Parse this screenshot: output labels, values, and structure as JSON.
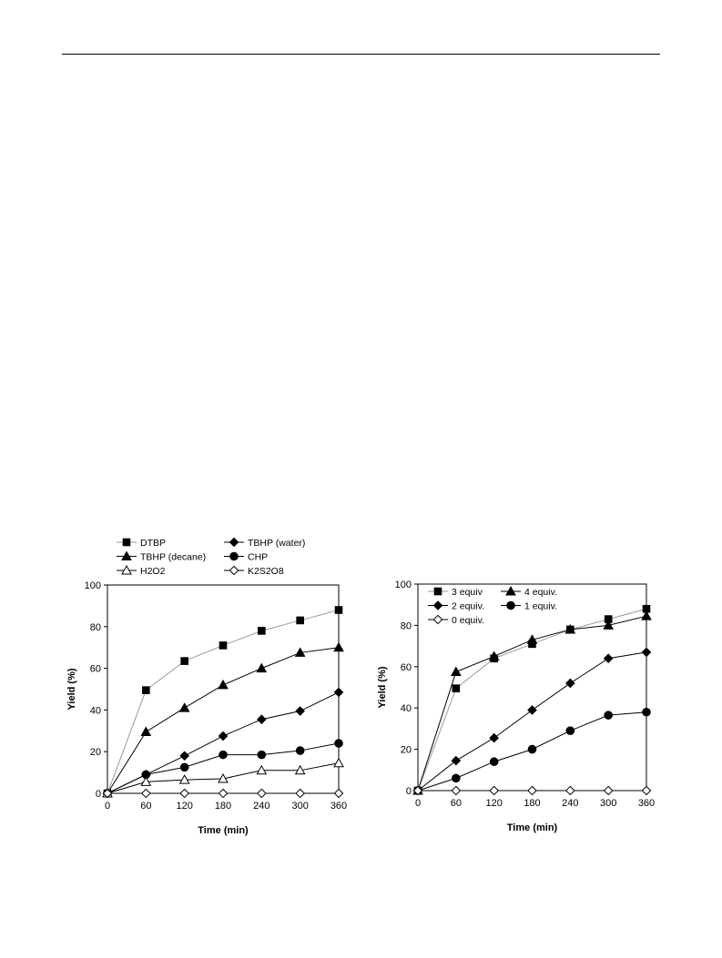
{
  "page": {
    "background": "#ffffff"
  },
  "chart_data": [
    {
      "type": "line",
      "xlabel": "Time (min)",
      "ylabel": "Yield (%)",
      "xlim": [
        0,
        360
      ],
      "ylim": [
        0,
        100
      ],
      "x_ticks": [
        "0",
        "60",
        "120",
        "180",
        "240",
        "300",
        "360"
      ],
      "y_ticks": [
        "0",
        "20",
        "40",
        "60",
        "80",
        "100"
      ],
      "grid": false,
      "legend_position": "top",
      "x": [
        0,
        60,
        120,
        180,
        240,
        300,
        360
      ],
      "series": [
        {
          "name": "DTBP",
          "marker": "square",
          "filled": true,
          "line_color": "#9a9a9a",
          "values": [
            0,
            49.5,
            63.5,
            71,
            78,
            83,
            88
          ]
        },
        {
          "name": "TBHP (water)",
          "marker": "diamond",
          "filled": true,
          "line_color": "#000000",
          "values": [
            0,
            9,
            18,
            27.5,
            35.5,
            39.5,
            48.5
          ]
        },
        {
          "name": "TBHP (decane)",
          "marker": "triangle",
          "filled": true,
          "line_color": "#000000",
          "values": [
            0,
            29.5,
            41,
            52,
            60,
            67.5,
            70
          ]
        },
        {
          "name": "CHP",
          "marker": "circle",
          "filled": true,
          "line_color": "#000000",
          "values": [
            0,
            9,
            12.5,
            18.5,
            18.5,
            20.5,
            24
          ]
        },
        {
          "name": "H2O2",
          "marker": "triangle",
          "filled": false,
          "line_color": "#000000",
          "values": [
            0,
            5.5,
            6.5,
            7,
            11,
            11,
            14.5
          ]
        },
        {
          "name": "K2S2O8",
          "marker": "diamond",
          "filled": false,
          "line_color": "#000000",
          "values": [
            0,
            0,
            0,
            0,
            0,
            0,
            0
          ]
        }
      ]
    },
    {
      "type": "line",
      "xlabel": "Time (min)",
      "ylabel": "Yield (%)",
      "xlim": [
        0,
        360
      ],
      "ylim": [
        0,
        100
      ],
      "x_ticks": [
        "0",
        "60",
        "120",
        "180",
        "240",
        "300",
        "360"
      ],
      "y_ticks": [
        "0",
        "20",
        "40",
        "60",
        "80",
        "100"
      ],
      "grid": false,
      "legend_position": "top-left",
      "x": [
        0,
        60,
        120,
        180,
        240,
        300,
        360
      ],
      "series": [
        {
          "name": "3 equiv",
          "marker": "square",
          "filled": true,
          "line_color": "#9a9a9a",
          "values": [
            0,
            49.5,
            64,
            71,
            78,
            83,
            88
          ]
        },
        {
          "name": "4 equiv.",
          "marker": "triangle",
          "filled": true,
          "line_color": "#000000",
          "values": [
            0,
            57.5,
            65,
            73,
            78,
            80,
            84.5
          ]
        },
        {
          "name": "2 equiv.",
          "marker": "diamond",
          "filled": true,
          "line_color": "#000000",
          "values": [
            0,
            14.5,
            25.5,
            39,
            52,
            64,
            67
          ]
        },
        {
          "name": "1 equiv.",
          "marker": "circle",
          "filled": true,
          "line_color": "#000000",
          "values": [
            0,
            6,
            14,
            20,
            29,
            36.5,
            38
          ]
        },
        {
          "name": "0 equiv.",
          "marker": "diamond",
          "filled": false,
          "line_color": "#000000",
          "values": [
            0,
            0,
            0,
            0,
            0,
            0,
            0
          ]
        }
      ]
    }
  ]
}
